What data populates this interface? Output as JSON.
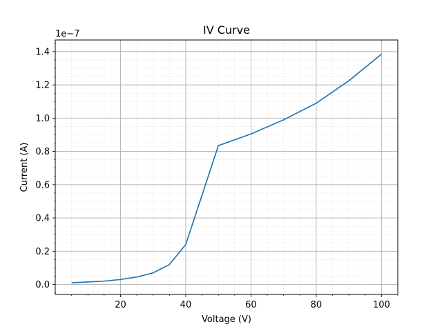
{
  "chart_data": {
    "type": "line",
    "title": "IV Curve",
    "xlabel": "Voltage (V)",
    "ylabel": "Current (A)",
    "y_scale_factor_label": "1e−7",
    "xlim": [
      0,
      105
    ],
    "ylim": [
      -0.06,
      1.47
    ],
    "x_ticks": [
      20,
      40,
      60,
      80,
      100
    ],
    "y_ticks": [
      0.0,
      0.2,
      0.4,
      0.6,
      0.8,
      1.0,
      1.2,
      1.4
    ],
    "x_tick_labels": [
      "20",
      "40",
      "60",
      "80",
      "100"
    ],
    "y_tick_labels": [
      "0.0",
      "0.2",
      "0.4",
      "0.6",
      "0.8",
      "1.0",
      "1.2",
      "1.4"
    ],
    "grid": "major and minor",
    "series": [
      {
        "color": "#1f77b4",
        "x": [
          5,
          10,
          15,
          20,
          25,
          30,
          35,
          40,
          50,
          60,
          70,
          80,
          90,
          100
        ],
        "y": [
          0.01,
          0.015,
          0.02,
          0.03,
          0.045,
          0.07,
          0.12,
          0.24,
          0.835,
          0.905,
          0.99,
          1.09,
          1.225,
          1.385
        ]
      }
    ]
  }
}
